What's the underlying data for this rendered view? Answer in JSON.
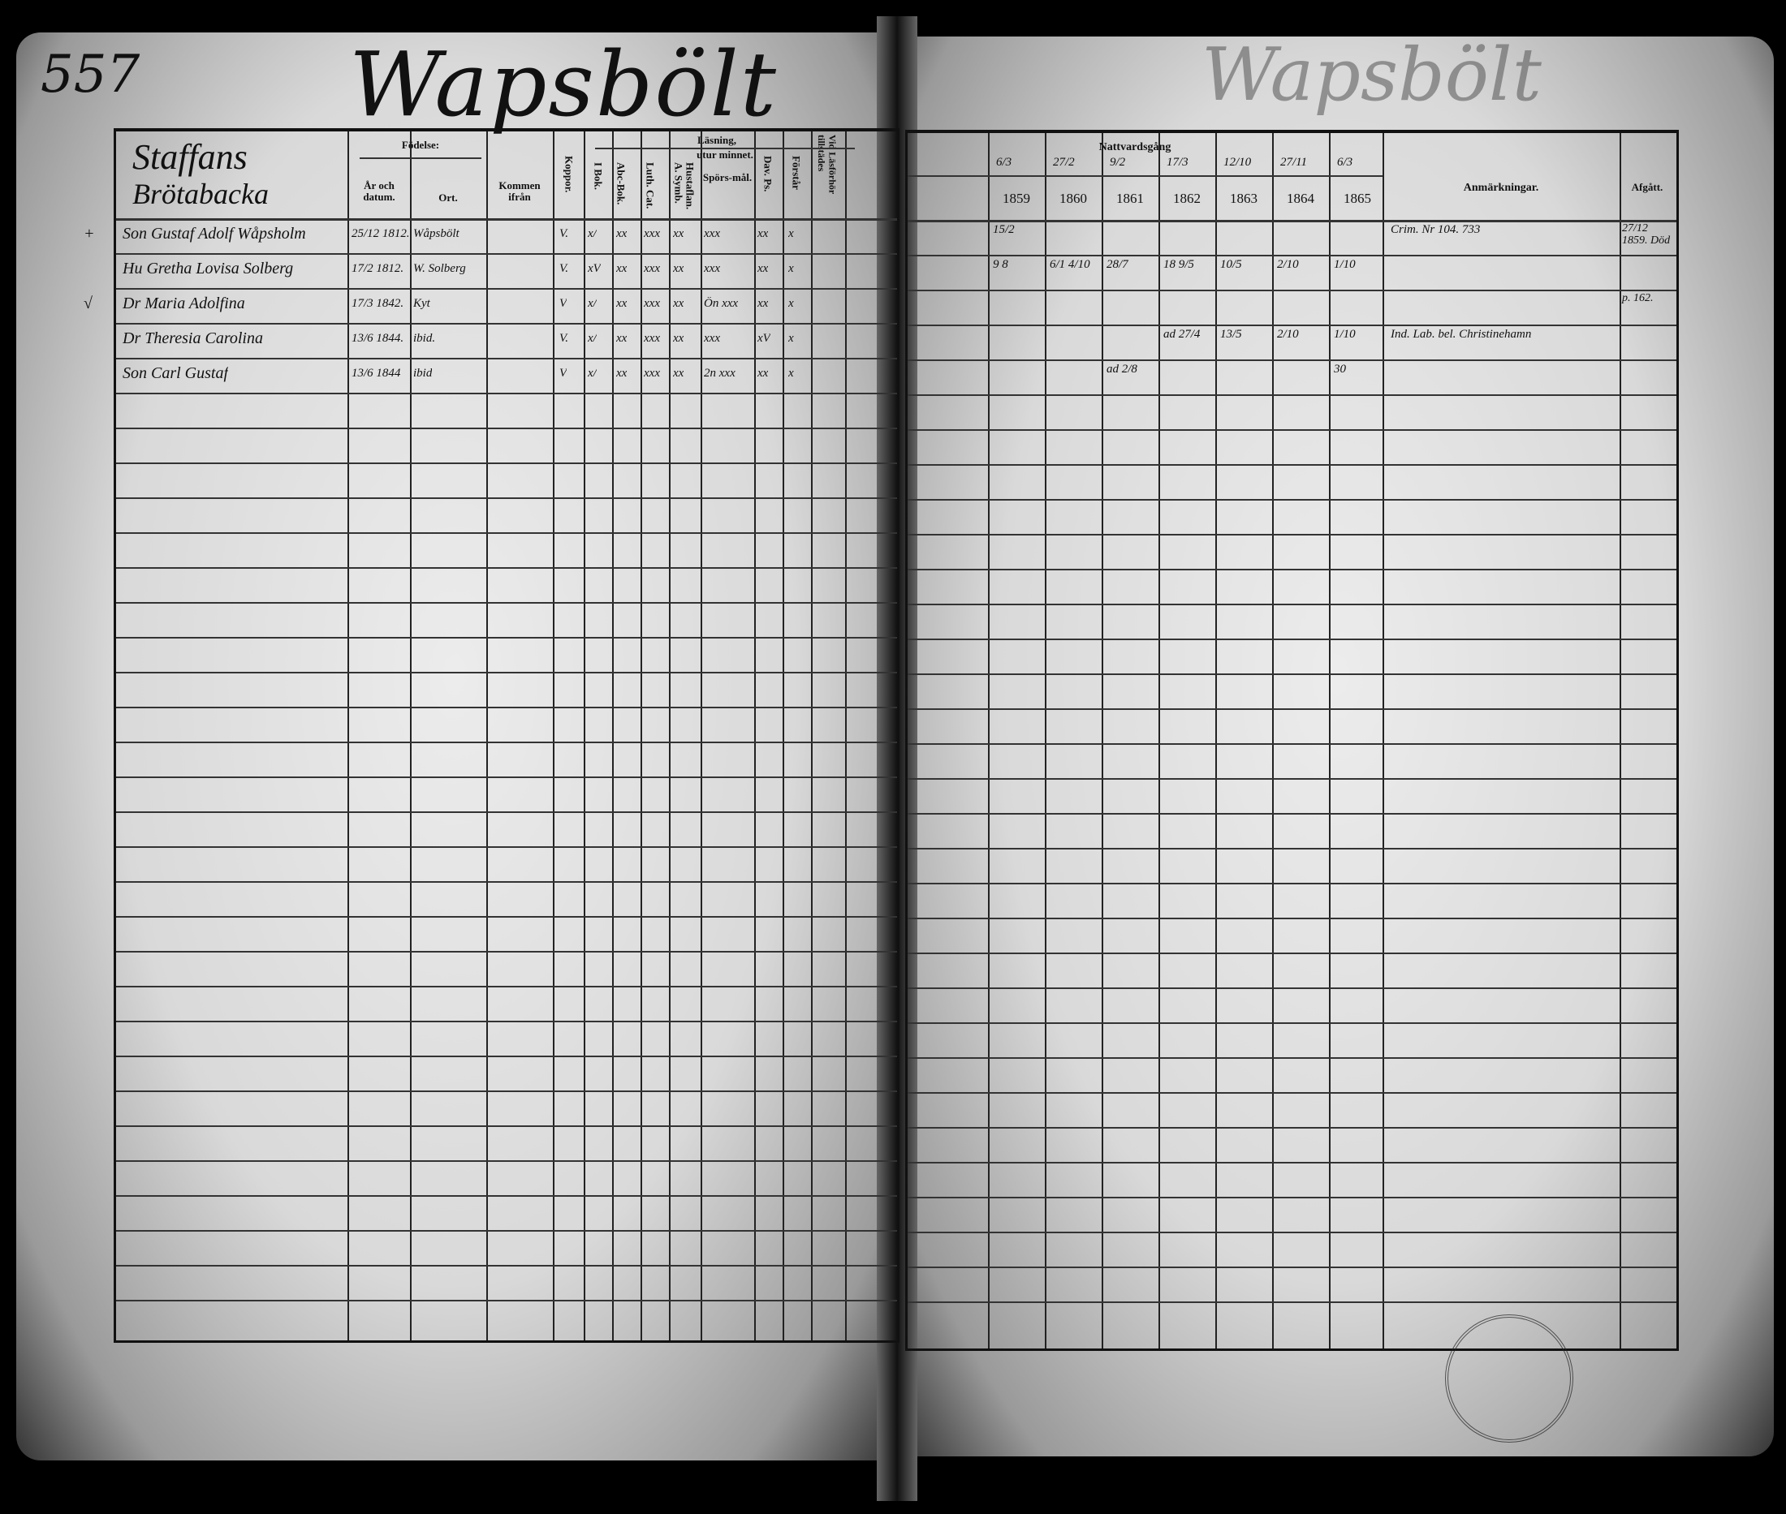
{
  "page_number": "557",
  "title": "Wapsbölt",
  "right_title": "Wapsbölt",
  "left": {
    "place": [
      "Staffans",
      "Brötabacka"
    ],
    "headers": {
      "fodelse": "Födelse:",
      "ar_datum": "År och datum.",
      "ort": "Ort.",
      "kommen": "Kommen ifrån",
      "koppor": "Koppor.",
      "lasning": "Läsning,",
      "utur": "utur minnet.",
      "i_bok": "I Bok.",
      "abc": "Abc-Bok.",
      "luth": "Luth. Cat.",
      "hustaflan": "Hustaflan. A. Symb.",
      "sporsmal": "Spörs-mål.",
      "dav": "Dav. Ps.",
      "forstar": "Förstår",
      "vid": "Vid Läsförhör tillstädes"
    },
    "rows": [
      {
        "mark": "+",
        "name": "Son Gustaf Adolf Wåpsholm",
        "date": "25/12 1812.",
        "place": "Wåpsbölt",
        "koppor": "V.",
        "i_bok": "x/",
        "abc": "xx",
        "luth": "xxx",
        "hust": "xx",
        "spors": "xxx",
        "dav": "xx",
        "forst": "x"
      },
      {
        "mark": "",
        "name": "Hu Gretha Lovisa Solberg",
        "date": "17/2 1812.",
        "place": "W. Solberg",
        "koppor": "V.",
        "i_bok": "xV",
        "abc": "xx",
        "luth": "xxx",
        "hust": "xx",
        "spors": "xxx",
        "dav": "xx",
        "forst": "x"
      },
      {
        "mark": "√",
        "name": "Dr Maria Adolfina",
        "date": "17/3 1842.",
        "place": "Kyt",
        "koppor": "V",
        "i_bok": "x/",
        "abc": "xx",
        "luth": "xxx",
        "hust": "xx",
        "spors": "Ön xxx",
        "dav": "xx",
        "forst": "x"
      },
      {
        "mark": "",
        "name": "Dr Theresia Carolina",
        "date": "13/6 1844.",
        "place": "ibid.",
        "koppor": "V.",
        "i_bok": "x/",
        "abc": "xx",
        "luth": "xxx",
        "hust": "xx",
        "spors": "xxx",
        "dav": "xV",
        "forst": "x"
      },
      {
        "mark": "",
        "name": "Son Carl Gustaf",
        "date": "13/6 1844",
        "place": "ibid",
        "koppor": "V",
        "i_bok": "x/",
        "abc": "xx",
        "luth": "xxx",
        "hust": "xx",
        "spors": "2n xxx",
        "dav": "xx",
        "forst": "x"
      }
    ]
  },
  "right": {
    "headers": {
      "nattvardsgang": "Nattvardsgång",
      "dates": [
        "6/3",
        "27/2",
        "9/2",
        "17/3",
        "12/10",
        "27/11",
        "6/3"
      ],
      "years": [
        "1859",
        "1860",
        "1861",
        "1862",
        "1863",
        "1864",
        "1865"
      ],
      "anmarkningar": "Anmärkningar.",
      "afgatt": "Afgått."
    },
    "rows": [
      {
        "cells": [
          "15/2",
          "",
          "",
          "",
          "",
          "",
          ""
        ],
        "remark": "Crim. Nr 104. 733",
        "afgatt": "27/12 1859. Död"
      },
      {
        "cells": [
          "9 8",
          "6/1 4/10",
          "28/7",
          "18 9/5",
          "10/5",
          "2/10",
          "1/10"
        ],
        "remark": "",
        "afgatt": ""
      },
      {
        "cells": [
          "",
          "",
          "",
          "",
          "",
          "",
          ""
        ],
        "remark": "",
        "afgatt": "p. 162."
      },
      {
        "cells": [
          "",
          "",
          "",
          "ad 27/4",
          "13/5",
          "2/10",
          "1/10"
        ],
        "remark": "Ind. Lab. bel. Christinehamn",
        "afgatt": ""
      },
      {
        "cells": [
          "",
          "",
          "ad 2/8",
          "",
          "",
          "",
          "30"
        ],
        "remark": "",
        "afgatt": ""
      }
    ]
  },
  "colors": {
    "ink": "#111111",
    "paper": "#e2e2e2",
    "border": "#000000"
  }
}
